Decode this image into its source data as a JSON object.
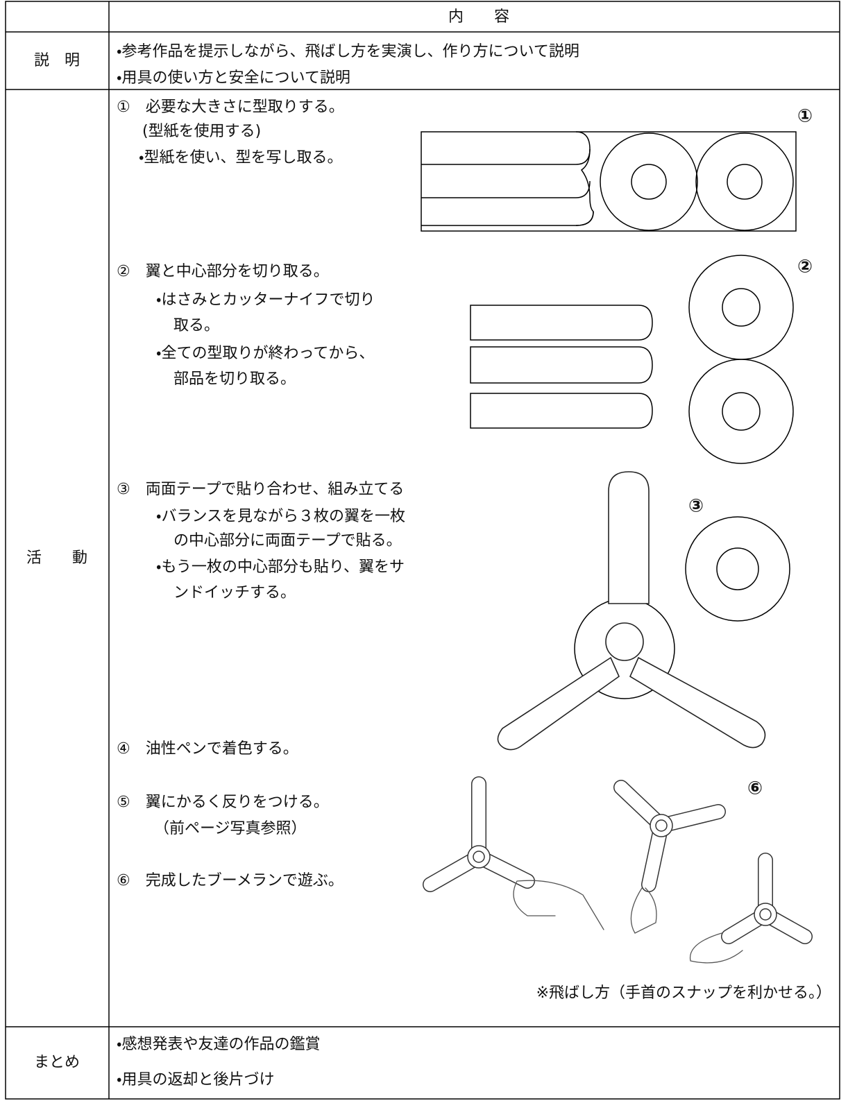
{
  "table": {
    "header": "内　　容",
    "rows": [
      {
        "label": "説　明",
        "items": [
          "・参考作品を提示しながら、飛ばし方を実演し、作り方について説明",
          "・用具の使い方と安全について説明"
        ]
      },
      {
        "label": "活　　動",
        "steps": [
          {
            "heading": "①　必要な大きさに型取りする。",
            "lines": [
              "(型紙を使用する)",
              "・型紙を使い、型を写し取る。"
            ]
          },
          {
            "heading": "②　翼と中心部分を切り取る。",
            "lines": [
              "・はさみとカッターナイフで切り",
              "取る。",
              "・全ての型取りが終わってから、",
              "部品を切り取る。"
            ]
          },
          {
            "heading": "③　両面テープで貼り合わせ、組み立てる",
            "lines": [
              "・バランスを見ながら３枚の翼を一枚",
              "の中心部分に両面テープで貼る。",
              "・もう一枚の中心部分も貼り、翼をサ",
              "ンドイッチする。"
            ]
          },
          {
            "heading": "④　油性ペンで着色する。",
            "lines": []
          },
          {
            "heading": "⑤　翼にかるく反りをつける。",
            "lines": [
              "（前ページ写真参照）"
            ]
          },
          {
            "heading": "⑥　完成したブーメランで遊ぶ。",
            "lines": []
          }
        ],
        "figure_labels": [
          "①",
          "②",
          "③",
          "⑥"
        ],
        "caption": "※飛ばし方（手首のスナップを利かせる。）"
      },
      {
        "label": "まとめ",
        "items": [
          "・感想発表や友達の作品の鑑賞",
          "・用具の返却と後片づけ"
        ]
      }
    ]
  }
}
